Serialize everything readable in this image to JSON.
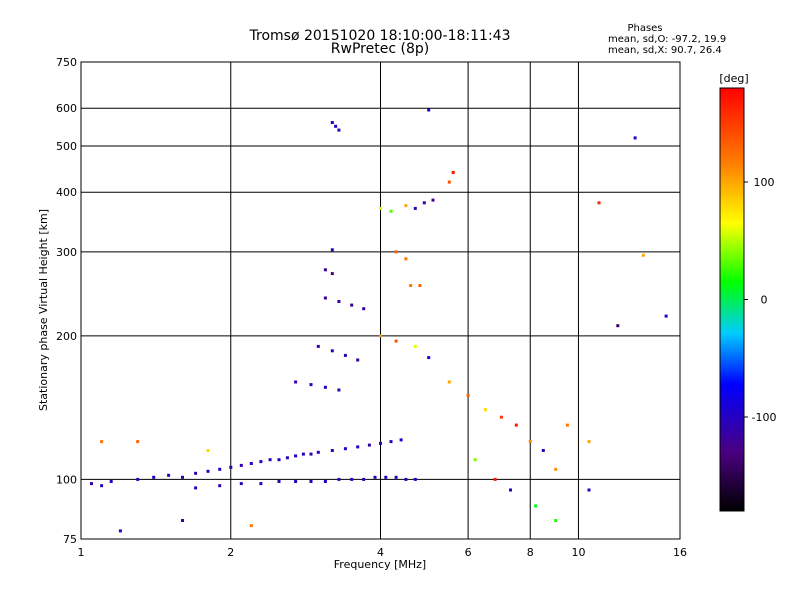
{
  "chart_data": {
    "type": "scatter",
    "title": "Tromsø 20151020 18:10:00-18:11:43",
    "subtitle": "RwPretec (8p)",
    "xlabel": "Frequency [MHz]",
    "ylabel": "Stationary phase Virtual Height [km]",
    "x_scale": "log",
    "y_scale": "log",
    "xlim": [
      1,
      16
    ],
    "ylim": [
      75,
      750
    ],
    "grid": true,
    "x_ticks": [
      1,
      2,
      4,
      6,
      8,
      10,
      16
    ],
    "x_tick_labels": [
      "1",
      "2",
      "4",
      "6",
      "8",
      "10",
      "16"
    ],
    "y_ticks": [
      75,
      100,
      200,
      300,
      400,
      500,
      600,
      750
    ],
    "y_tick_labels": [
      "75",
      "100",
      "200",
      "300",
      "400",
      "500",
      "600",
      "750"
    ],
    "stats": {
      "title": "Phases",
      "line_o": "mean, sd,O: -97.2, 19.9",
      "line_x": "mean, sd,X: 90.7, 26.4"
    },
    "colorbar": {
      "label": "[deg]",
      "range": [
        -180,
        180
      ],
      "ticks": [
        100,
        0,
        -100
      ],
      "tick_labels": [
        "100",
        "0",
        "-100"
      ]
    },
    "points": [
      {
        "x": 1.05,
        "y": 98,
        "phase": -110
      },
      {
        "x": 1.1,
        "y": 97,
        "phase": -100
      },
      {
        "x": 1.15,
        "y": 99,
        "phase": -105
      },
      {
        "x": 1.3,
        "y": 100,
        "phase": -110
      },
      {
        "x": 1.4,
        "y": 101,
        "phase": -95
      },
      {
        "x": 1.5,
        "y": 102,
        "phase": -100
      },
      {
        "x": 1.6,
        "y": 101,
        "phase": -105
      },
      {
        "x": 1.7,
        "y": 103,
        "phase": -110
      },
      {
        "x": 1.8,
        "y": 104,
        "phase": -100
      },
      {
        "x": 1.9,
        "y": 105,
        "phase": -95
      },
      {
        "x": 2.0,
        "y": 106,
        "phase": -105
      },
      {
        "x": 2.1,
        "y": 107,
        "phase": -110
      },
      {
        "x": 2.2,
        "y": 108,
        "phase": -100
      },
      {
        "x": 2.3,
        "y": 109,
        "phase": -105
      },
      {
        "x": 2.4,
        "y": 110,
        "phase": -100
      },
      {
        "x": 2.5,
        "y": 110,
        "phase": -95
      },
      {
        "x": 2.6,
        "y": 111,
        "phase": -110
      },
      {
        "x": 2.7,
        "y": 112,
        "phase": -105
      },
      {
        "x": 2.8,
        "y": 113,
        "phase": -100
      },
      {
        "x": 2.9,
        "y": 113,
        "phase": -110
      },
      {
        "x": 3.0,
        "y": 114,
        "phase": -100
      },
      {
        "x": 3.2,
        "y": 115,
        "phase": -105
      },
      {
        "x": 3.4,
        "y": 116,
        "phase": -100
      },
      {
        "x": 3.6,
        "y": 117,
        "phase": -95
      },
      {
        "x": 3.8,
        "y": 118,
        "phase": -110
      },
      {
        "x": 4.0,
        "y": 119,
        "phase": -100
      },
      {
        "x": 4.2,
        "y": 120,
        "phase": -105
      },
      {
        "x": 4.4,
        "y": 121,
        "phase": -100
      },
      {
        "x": 1.7,
        "y": 96,
        "phase": -100
      },
      {
        "x": 1.9,
        "y": 97,
        "phase": -110
      },
      {
        "x": 2.1,
        "y": 98,
        "phase": -105
      },
      {
        "x": 2.3,
        "y": 98,
        "phase": -100
      },
      {
        "x": 2.5,
        "y": 99,
        "phase": -110
      },
      {
        "x": 2.7,
        "y": 99,
        "phase": -100
      },
      {
        "x": 2.9,
        "y": 99,
        "phase": -105
      },
      {
        "x": 3.1,
        "y": 99,
        "phase": -95
      },
      {
        "x": 3.3,
        "y": 100,
        "phase": -100
      },
      {
        "x": 3.5,
        "y": 100,
        "phase": -110
      },
      {
        "x": 3.7,
        "y": 100,
        "phase": -105
      },
      {
        "x": 3.9,
        "y": 101,
        "phase": -100
      },
      {
        "x": 4.1,
        "y": 101,
        "phase": -100
      },
      {
        "x": 4.3,
        "y": 101,
        "phase": -105
      },
      {
        "x": 4.5,
        "y": 100,
        "phase": -110
      },
      {
        "x": 4.7,
        "y": 100,
        "phase": -100
      },
      {
        "x": 2.7,
        "y": 160,
        "phase": -110
      },
      {
        "x": 2.9,
        "y": 158,
        "phase": -105
      },
      {
        "x": 3.1,
        "y": 156,
        "phase": -100
      },
      {
        "x": 3.3,
        "y": 154,
        "phase": -110
      },
      {
        "x": 3.0,
        "y": 190,
        "phase": -115
      },
      {
        "x": 3.2,
        "y": 186,
        "phase": -110
      },
      {
        "x": 3.4,
        "y": 182,
        "phase": -105
      },
      {
        "x": 3.6,
        "y": 178,
        "phase": -115
      },
      {
        "x": 3.1,
        "y": 240,
        "phase": -120
      },
      {
        "x": 3.3,
        "y": 236,
        "phase": -115
      },
      {
        "x": 3.5,
        "y": 232,
        "phase": -120
      },
      {
        "x": 3.7,
        "y": 228,
        "phase": -110
      },
      {
        "x": 3.1,
        "y": 275,
        "phase": -120
      },
      {
        "x": 3.2,
        "y": 270,
        "phase": -125
      },
      {
        "x": 3.2,
        "y": 303,
        "phase": -110
      },
      {
        "x": 3.25,
        "y": 550,
        "phase": -100
      },
      {
        "x": 3.2,
        "y": 560,
        "phase": -105
      },
      {
        "x": 3.3,
        "y": 540,
        "phase": -110
      },
      {
        "x": 4.0,
        "y": 370,
        "phase": 60
      },
      {
        "x": 4.2,
        "y": 365,
        "phase": 30
      },
      {
        "x": 4.5,
        "y": 375,
        "phase": 100
      },
      {
        "x": 4.7,
        "y": 370,
        "phase": -110
      },
      {
        "x": 4.9,
        "y": 380,
        "phase": -115
      },
      {
        "x": 5.1,
        "y": 385,
        "phase": -120
      },
      {
        "x": 4.3,
        "y": 300,
        "phase": 130
      },
      {
        "x": 4.5,
        "y": 290,
        "phase": 120
      },
      {
        "x": 4.6,
        "y": 255,
        "phase": 120
      },
      {
        "x": 4.8,
        "y": 255,
        "phase": 130
      },
      {
        "x": 4.0,
        "y": 200,
        "phase": 100
      },
      {
        "x": 4.3,
        "y": 195,
        "phase": 140
      },
      {
        "x": 4.7,
        "y": 190,
        "phase": 60
      },
      {
        "x": 5.0,
        "y": 180,
        "phase": -90
      },
      {
        "x": 5.5,
        "y": 160,
        "phase": 100
      },
      {
        "x": 6.0,
        "y": 150,
        "phase": 130
      },
      {
        "x": 6.5,
        "y": 140,
        "phase": 80
      },
      {
        "x": 7.0,
        "y": 135,
        "phase": 150
      },
      {
        "x": 7.5,
        "y": 130,
        "phase": 170
      },
      {
        "x": 8.0,
        "y": 120,
        "phase": 110
      },
      {
        "x": 8.5,
        "y": 115,
        "phase": -100
      },
      {
        "x": 9.0,
        "y": 105,
        "phase": 110
      },
      {
        "x": 9.5,
        "y": 130,
        "phase": 120
      },
      {
        "x": 10.5,
        "y": 120,
        "phase": 100
      },
      {
        "x": 10.5,
        "y": 95,
        "phase": -100
      },
      {
        "x": 6.2,
        "y": 110,
        "phase": 40
      },
      {
        "x": 6.8,
        "y": 100,
        "phase": 170
      },
      {
        "x": 7.3,
        "y": 95,
        "phase": -100
      },
      {
        "x": 8.2,
        "y": 88,
        "phase": 10
      },
      {
        "x": 9.0,
        "y": 82,
        "phase": 20
      },
      {
        "x": 5.5,
        "y": 420,
        "phase": 140
      },
      {
        "x": 5.6,
        "y": 440,
        "phase": 170
      },
      {
        "x": 5.0,
        "y": 595,
        "phase": -100
      },
      {
        "x": 13.0,
        "y": 520,
        "phase": -100
      },
      {
        "x": 15.0,
        "y": 220,
        "phase": -100
      },
      {
        "x": 12.0,
        "y": 210,
        "phase": -140
      },
      {
        "x": 11.0,
        "y": 380,
        "phase": 160
      },
      {
        "x": 13.5,
        "y": 295,
        "phase": 100
      },
      {
        "x": 1.2,
        "y": 78,
        "phase": -100
      },
      {
        "x": 1.6,
        "y": 82,
        "phase": -110
      },
      {
        "x": 1.1,
        "y": 120,
        "phase": 120
      },
      {
        "x": 1.3,
        "y": 120,
        "phase": 130
      },
      {
        "x": 1.8,
        "y": 115,
        "phase": 80
      },
      {
        "x": 2.2,
        "y": 80,
        "phase": 120
      }
    ]
  }
}
